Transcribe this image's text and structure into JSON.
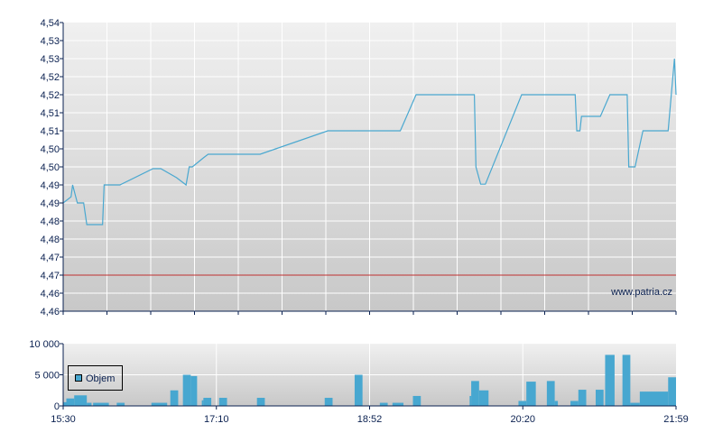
{
  "chart_data": [
    {
      "type": "line",
      "ylim": [
        4.46,
        4.54
      ],
      "ytick_labels": [
        "4,54",
        "4,53",
        "4,53",
        "4,52",
        "4,52",
        "4,51",
        "4,51",
        "4,50",
        "4,50",
        "4,49",
        "4,49",
        "4,48",
        "4,48",
        "4,47",
        "4,47",
        "4,46",
        "4,46"
      ],
      "xlim": [
        "15:30",
        "21:59"
      ],
      "grid": true,
      "reference_line": {
        "value": 4.47,
        "color": "#c03030"
      },
      "line_color": "#4aa8d0",
      "watermark": "www.patria.cz",
      "series": [
        {
          "points": [
            [
              "15:30",
              4.49
            ],
            [
              "15:35",
              4.4917
            ],
            [
              "15:36",
              4.495
            ],
            [
              "15:39",
              4.49
            ],
            [
              "15:43",
              4.49
            ],
            [
              "15:45",
              4.484
            ],
            [
              "15:55",
              4.484
            ],
            [
              "15:56",
              4.495
            ],
            [
              "16:06",
              4.495
            ],
            [
              "16:27",
              4.4995
            ],
            [
              "16:32",
              4.4995
            ],
            [
              "16:42",
              4.497
            ],
            [
              "16:48",
              4.495
            ],
            [
              "16:50",
              4.5
            ],
            [
              "16:52",
              4.5
            ],
            [
              "16:59",
              4.5025
            ],
            [
              "17:02",
              4.5035
            ],
            [
              "17:35",
              4.5035
            ],
            [
              "18:18",
              4.51
            ],
            [
              "19:04",
              4.51
            ],
            [
              "19:14",
              4.52
            ],
            [
              "19:51",
              4.52
            ],
            [
              "19:52",
              4.5
            ],
            [
              "19:55",
              4.4952
            ],
            [
              "19:58",
              4.4952
            ],
            [
              "20:21",
              4.52
            ],
            [
              "20:55",
              4.52
            ],
            [
              "20:56",
              4.51
            ],
            [
              "20:58",
              4.51
            ],
            [
              "20:59",
              4.514
            ],
            [
              "21:11",
              4.514
            ],
            [
              "21:17",
              4.52
            ],
            [
              "21:28",
              4.52
            ],
            [
              "21:29",
              4.5
            ],
            [
              "21:33",
              4.5
            ],
            [
              "21:38",
              4.51
            ],
            [
              "21:54",
              4.51
            ],
            [
              "21:58",
              4.53
            ],
            [
              "21:59",
              4.52
            ]
          ]
        }
      ]
    },
    {
      "type": "bar",
      "ylim": [
        0,
        10000
      ],
      "ytick_labels": [
        "10 000",
        "5 000",
        "0"
      ],
      "yticks": [
        10000,
        5000,
        0
      ],
      "xtick_labels": [
        "15:30",
        "17:10",
        "18:52",
        "20:20",
        "21:59"
      ],
      "legend": {
        "label": "Objem",
        "placement": "left"
      },
      "bar_color": "#47a7d0",
      "bars": [
        [
          "15:30",
          "15:32",
          600
        ],
        [
          "15:32",
          "15:37",
          1200
        ],
        [
          "15:37",
          "15:45",
          1700
        ],
        [
          "15:45",
          "15:48",
          500
        ],
        [
          "15:49",
          "15:59",
          500
        ],
        [
          "16:04",
          "16:09",
          500
        ],
        [
          "16:26",
          "16:36",
          500
        ],
        [
          "16:38",
          "16:43",
          2500
        ],
        [
          "16:46",
          "16:51",
          5000
        ],
        [
          "16:51",
          "16:55",
          4800
        ],
        [
          "16:58",
          "16:59",
          900
        ],
        [
          "16:59",
          "17:04",
          1300
        ],
        [
          "17:09",
          "17:14",
          1300
        ],
        [
          "17:33",
          "17:38",
          1300
        ],
        [
          "18:16",
          "18:21",
          1300
        ],
        [
          "18:35",
          "18:40",
          5000
        ],
        [
          "18:51",
          "18:56",
          500
        ],
        [
          "18:59",
          "19:06",
          500
        ],
        [
          "19:12",
          "19:17",
          1600
        ],
        [
          "19:48",
          "19:49",
          1600
        ],
        [
          "19:49",
          "19:54",
          4000
        ],
        [
          "19:54",
          "20:00",
          2500
        ],
        [
          "20:19",
          "20:24",
          800
        ],
        [
          "20:24",
          "20:30",
          3900
        ],
        [
          "20:37",
          "20:42",
          4000
        ],
        [
          "20:42",
          "20:44",
          800
        ],
        [
          "20:52",
          "20:57",
          800
        ],
        [
          "20:57",
          "21:02",
          2600
        ],
        [
          "21:08",
          "21:13",
          2600
        ],
        [
          "21:14",
          "21:20",
          8200
        ],
        [
          "21:25",
          "21:30",
          8200
        ],
        [
          "21:30",
          "21:36",
          500
        ],
        [
          "21:36",
          "21:54",
          2300
        ],
        [
          "21:54",
          "21:59",
          4600
        ]
      ]
    }
  ]
}
